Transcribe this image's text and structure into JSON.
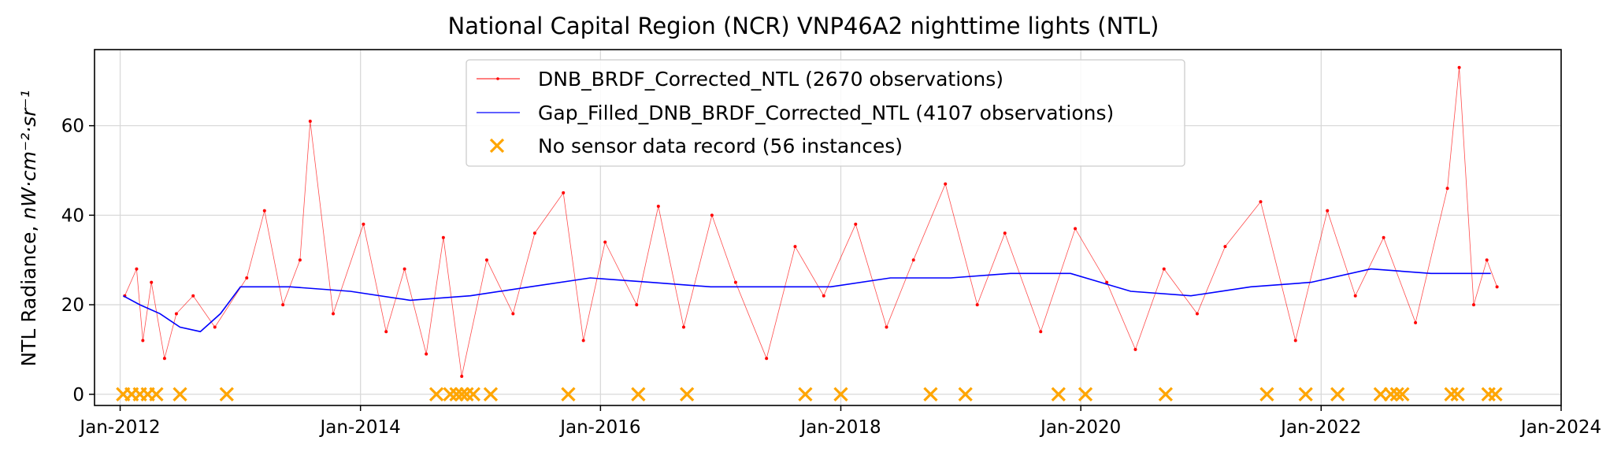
{
  "chart_data": {
    "type": "line",
    "title": "National Capital Region (NCR) VNP46A2 nighttime lights (NTL)",
    "xlabel": "",
    "ylabel_prefix": "NTL Radiance, ",
    "ylabel_unit": "nW·cm⁻²·sr⁻¹",
    "xlim": [
      "2011-10-15",
      "2024-01-01"
    ],
    "ylim": [
      -2.5,
      77
    ],
    "x_ticks": [
      {
        "date": "2012-01-01",
        "label": "Jan-2012"
      },
      {
        "date": "2014-01-01",
        "label": "Jan-2014"
      },
      {
        "date": "2016-01-01",
        "label": "Jan-2016"
      },
      {
        "date": "2018-01-01",
        "label": "Jan-2018"
      },
      {
        "date": "2020-01-01",
        "label": "Jan-2020"
      },
      {
        "date": "2022-01-01",
        "label": "Jan-2022"
      },
      {
        "date": "2024-01-01",
        "label": "Jan-2024"
      }
    ],
    "y_ticks": [
      0,
      20,
      40,
      60
    ],
    "grid": true,
    "legend_position": "top-center",
    "series": [
      {
        "name": "DNB_BRDF_Corrected_NTL (2670 observations)",
        "kind": "line-with-markers",
        "color": "#ff0000",
        "points": [
          [
            "2012-01-15",
            22
          ],
          [
            "2012-02-20",
            28
          ],
          [
            "2012-03-10",
            12
          ],
          [
            "2012-04-05",
            25
          ],
          [
            "2012-05-15",
            8
          ],
          [
            "2012-06-20",
            18
          ],
          [
            "2012-08-10",
            22
          ],
          [
            "2012-10-15",
            15
          ],
          [
            "2013-01-20",
            26
          ],
          [
            "2013-03-15",
            41
          ],
          [
            "2013-05-10",
            20
          ],
          [
            "2013-07-01",
            30
          ],
          [
            "2013-08-01",
            61
          ],
          [
            "2013-10-10",
            18
          ],
          [
            "2014-01-10",
            38
          ],
          [
            "2014-03-20",
            14
          ],
          [
            "2014-05-15",
            28
          ],
          [
            "2014-07-20",
            9
          ],
          [
            "2014-09-10",
            35
          ],
          [
            "2014-11-05",
            4
          ],
          [
            "2015-01-20",
            30
          ],
          [
            "2015-04-10",
            18
          ],
          [
            "2015-06-15",
            36
          ],
          [
            "2015-09-10",
            45
          ],
          [
            "2015-11-10",
            12
          ],
          [
            "2016-01-15",
            34
          ],
          [
            "2016-04-20",
            20
          ],
          [
            "2016-06-25",
            42
          ],
          [
            "2016-09-10",
            15
          ],
          [
            "2016-12-05",
            40
          ],
          [
            "2017-02-15",
            25
          ],
          [
            "2017-05-20",
            8
          ],
          [
            "2017-08-15",
            33
          ],
          [
            "2017-11-10",
            22
          ],
          [
            "2018-02-15",
            38
          ],
          [
            "2018-05-20",
            15
          ],
          [
            "2018-08-10",
            30
          ],
          [
            "2018-11-15",
            47
          ],
          [
            "2019-02-20",
            20
          ],
          [
            "2019-05-15",
            36
          ],
          [
            "2019-09-01",
            14
          ],
          [
            "2019-12-15",
            37
          ],
          [
            "2020-03-20",
            25
          ],
          [
            "2020-06-15",
            10
          ],
          [
            "2020-09-10",
            28
          ],
          [
            "2020-12-20",
            18
          ],
          [
            "2021-03-15",
            33
          ],
          [
            "2021-07-01",
            43
          ],
          [
            "2021-10-15",
            12
          ],
          [
            "2022-01-20",
            41
          ],
          [
            "2022-04-15",
            22
          ],
          [
            "2022-07-10",
            35
          ],
          [
            "2022-10-15",
            16
          ],
          [
            "2023-01-20",
            46
          ],
          [
            "2023-02-25",
            73
          ],
          [
            "2023-04-10",
            20
          ],
          [
            "2023-05-20",
            30
          ],
          [
            "2023-06-20",
            24
          ]
        ]
      },
      {
        "name": "Gap_Filled_DNB_BRDF_Corrected_NTL (4107 observations)",
        "kind": "line",
        "color": "#0000ff",
        "points": [
          [
            "2012-01-10",
            22
          ],
          [
            "2012-03-01",
            20
          ],
          [
            "2012-05-01",
            18
          ],
          [
            "2012-07-01",
            15
          ],
          [
            "2012-09-01",
            14
          ],
          [
            "2012-11-01",
            18
          ],
          [
            "2013-01-01",
            24
          ],
          [
            "2013-06-01",
            24
          ],
          [
            "2013-12-01",
            23
          ],
          [
            "2014-06-01",
            21
          ],
          [
            "2014-12-01",
            22
          ],
          [
            "2015-06-01",
            24
          ],
          [
            "2015-12-01",
            26
          ],
          [
            "2016-06-01",
            25
          ],
          [
            "2016-12-01",
            24
          ],
          [
            "2017-06-01",
            24
          ],
          [
            "2017-12-01",
            24
          ],
          [
            "2018-06-01",
            26
          ],
          [
            "2018-12-01",
            26
          ],
          [
            "2019-06-01",
            27
          ],
          [
            "2019-12-01",
            27
          ],
          [
            "2020-06-01",
            23
          ],
          [
            "2020-12-01",
            22
          ],
          [
            "2021-06-01",
            24
          ],
          [
            "2021-12-01",
            25
          ],
          [
            "2022-06-01",
            28
          ],
          [
            "2022-12-01",
            27
          ],
          [
            "2023-06-01",
            27
          ]
        ]
      },
      {
        "name": "No sensor data record  (56 instances)",
        "kind": "scatter-x",
        "color": "#ffa500",
        "points": [
          [
            "2012-01-10",
            0
          ],
          [
            "2012-02-05",
            0
          ],
          [
            "2012-03-01",
            0
          ],
          [
            "2012-03-25",
            0
          ],
          [
            "2012-04-20",
            0
          ],
          [
            "2012-07-01",
            0
          ],
          [
            "2012-11-20",
            0
          ],
          [
            "2014-08-20",
            0
          ],
          [
            "2014-10-01",
            0
          ],
          [
            "2014-10-20",
            0
          ],
          [
            "2014-11-05",
            0
          ],
          [
            "2014-11-20",
            0
          ],
          [
            "2014-12-10",
            0
          ],
          [
            "2015-02-01",
            0
          ],
          [
            "2015-09-25",
            0
          ],
          [
            "2016-04-25",
            0
          ],
          [
            "2016-09-20",
            0
          ],
          [
            "2017-09-15",
            0
          ],
          [
            "2018-01-01",
            0
          ],
          [
            "2018-10-01",
            0
          ],
          [
            "2019-01-15",
            0
          ],
          [
            "2019-10-25",
            0
          ],
          [
            "2020-01-15",
            0
          ],
          [
            "2020-09-15",
            0
          ],
          [
            "2021-07-20",
            0
          ],
          [
            "2021-11-15",
            0
          ],
          [
            "2022-02-20",
            0
          ],
          [
            "2022-07-01",
            0
          ],
          [
            "2022-08-01",
            0
          ],
          [
            "2022-08-20",
            0
          ],
          [
            "2022-09-05",
            0
          ],
          [
            "2023-02-01",
            0
          ],
          [
            "2023-02-20",
            0
          ],
          [
            "2023-05-25",
            0
          ],
          [
            "2023-06-15",
            0
          ]
        ]
      }
    ]
  }
}
